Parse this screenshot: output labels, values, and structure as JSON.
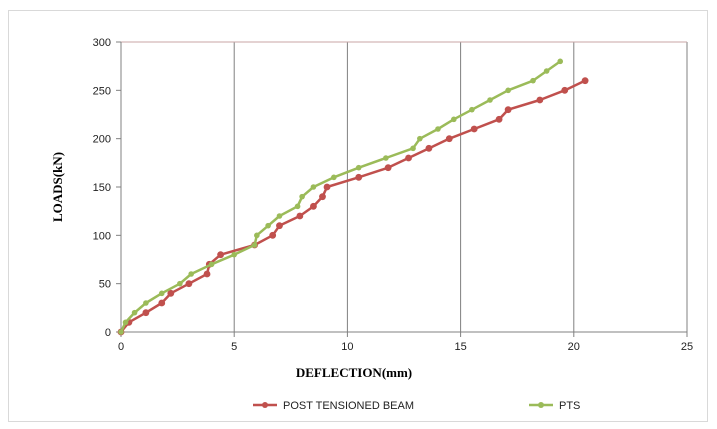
{
  "chart_data": {
    "type": "line",
    "xlabel": "DEFLECTION(mm)",
    "ylabel": "LOADS(kN)",
    "xlim": [
      0,
      25
    ],
    "ylim": [
      0,
      300
    ],
    "xticks": [
      0,
      5,
      10,
      15,
      20,
      25
    ],
    "yticks": [
      0,
      50,
      100,
      150,
      200,
      250,
      300
    ],
    "grid": "vertical",
    "legend": "bottom",
    "series": [
      {
        "name": "POST TENSIONED BEAM",
        "color": "#c0504d",
        "x": [
          0,
          0.35,
          1.1,
          1.8,
          2.2,
          3.0,
          3.8,
          3.9,
          4.4,
          5.9,
          6.7,
          7.0,
          7.9,
          8.5,
          8.9,
          9.1,
          10.5,
          11.8,
          12.7,
          13.6,
          14.5,
          15.6,
          16.7,
          17.1,
          18.5,
          19.6,
          20.5
        ],
        "y": [
          0,
          10,
          20,
          30,
          40,
          50,
          60,
          70,
          80,
          90,
          100,
          110,
          120,
          130,
          140,
          150,
          160,
          170,
          180,
          190,
          200,
          210,
          220,
          230,
          240,
          250,
          260
        ]
      },
      {
        "name": "PTS",
        "color": "#9bbb59",
        "x": [
          0,
          0.2,
          0.6,
          1.1,
          1.8,
          2.6,
          3.1,
          4.0,
          5.0,
          5.9,
          6.0,
          6.5,
          7.0,
          7.8,
          8.0,
          8.5,
          9.4,
          10.5,
          11.7,
          12.9,
          13.2,
          14.0,
          14.7,
          15.5,
          16.3,
          17.1,
          18.2,
          18.8,
          19.4
        ],
        "y": [
          0,
          10,
          20,
          30,
          40,
          50,
          60,
          70,
          80,
          90,
          100,
          110,
          120,
          130,
          140,
          150,
          160,
          170,
          180,
          190,
          200,
          210,
          220,
          230,
          240,
          250,
          260,
          270,
          280
        ]
      }
    ]
  }
}
